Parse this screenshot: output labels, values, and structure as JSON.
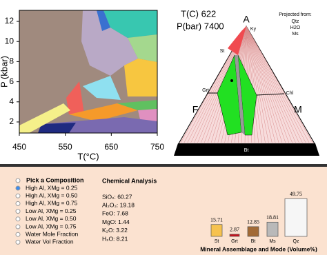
{
  "pseudosection": {
    "xlabel": "T(°C)",
    "ylabel": "P (kbar)",
    "xlim": [
      450,
      750
    ],
    "ylim": [
      0.9,
      13.1
    ],
    "xticks": [
      450,
      550,
      650,
      750
    ],
    "yticks": [
      2,
      4,
      6,
      8,
      10,
      12
    ]
  },
  "ternary": {
    "temperature": "T(C) 622",
    "pressure": "P(bar) 7400",
    "projected_title": "Projected from:",
    "projected": [
      "Qtz",
      "H2O",
      "Ms"
    ],
    "apices": [
      "A",
      "F",
      "M"
    ],
    "labels": [
      "Ky",
      "St",
      "Grt",
      "Chl",
      "Bt"
    ]
  },
  "controls": {
    "title": "Pick a Composition",
    "selected": 0,
    "options": [
      "High Al, XMg = 0.25",
      "High Al, XMg = 0.50",
      "High Al, XMg = 0.75",
      "Low Al, XMg = 0.25",
      "Low Al, XMg = 0.50",
      "Low Al, XMg = 0.75",
      "Water Mole Fraction",
      "Water Vol Fraction"
    ]
  },
  "analysis": {
    "title": "Chemical Analysis",
    "items": [
      "SiO₂: 60.27",
      "Al₂O₃: 19.18",
      "FeO: 7.68",
      "MgO: 1.44",
      "K₂O: 3.22",
      "H₂O: 8.21"
    ]
  },
  "modes": {
    "title": "Mineral Assemblage and Mode (Volume%)",
    "categories": [
      "St",
      "Grt",
      "Bt",
      "Ms",
      "Qz"
    ],
    "values": [
      15.71,
      2.87,
      12.85,
      18.81,
      49.75
    ],
    "colors": [
      "#f6c24f",
      "#c8101a",
      "#a26a35",
      "#b9b9b9",
      "#f6f6f6"
    ]
  }
}
